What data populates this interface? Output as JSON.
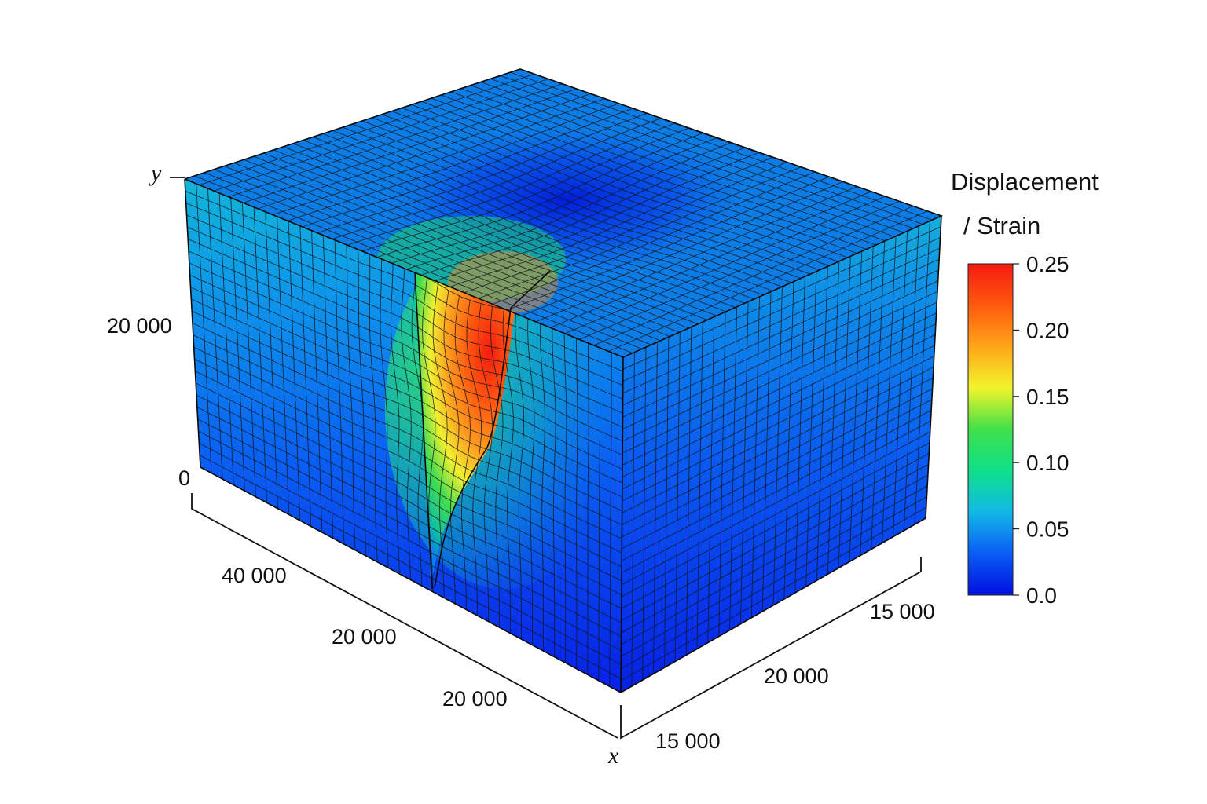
{
  "chart_data": {
    "type": "3d-surface",
    "title": "",
    "colorbar": {
      "title_line1": "Displacement",
      "title_line2": "/ Strain",
      "ticks": [
        "0.25",
        "0.20",
        "0.15",
        "0.10",
        "0.05",
        "0.0"
      ],
      "range": [
        0.0,
        0.25
      ],
      "colormap": [
        "#0010e0",
        "#0a5cf5",
        "#12b8e6",
        "#0ee08a",
        "#3fe04a",
        "#f2f52a",
        "#ffa51a",
        "#ff5a0e",
        "#f51a12"
      ]
    },
    "axes": {
      "vertical": {
        "name": "y",
        "ticks": [
          "20 000",
          "0"
        ]
      },
      "left_horizontal": {
        "ticks": [
          "40 000",
          "20 000",
          "20 000"
        ]
      },
      "right_horizontal": {
        "name": "x",
        "ticks": [
          "15 000",
          "20 000",
          "15 000"
        ]
      }
    },
    "field": {
      "background_max": 0.07,
      "peak_value": 0.25,
      "peak_location": "vertical slot cut into the front-left face near the top edge",
      "surface_depression_min": 0.0
    }
  }
}
